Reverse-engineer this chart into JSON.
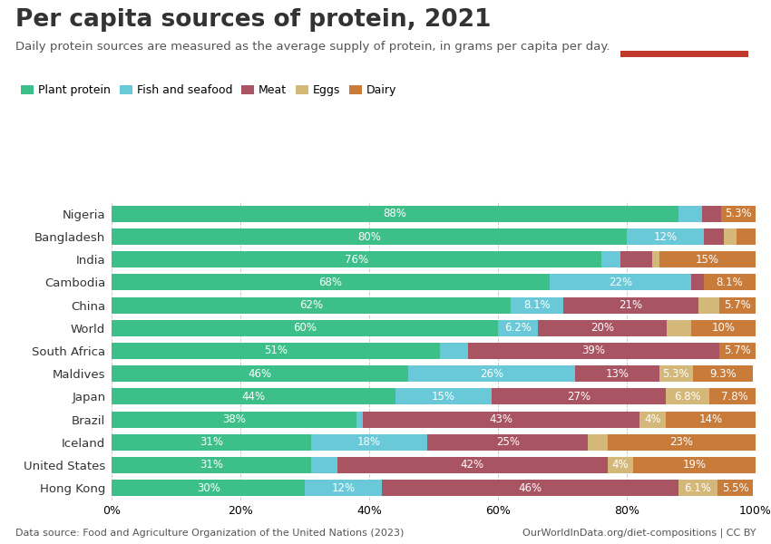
{
  "title": "Per capita sources of protein, 2021",
  "subtitle": "Daily protein sources are measured as the average supply of protein, in grams per capita per day.",
  "datasource": "Data source: Food and Agriculture Organization of the United Nations (2023)",
  "url": "OurWorldInData.org/diet-compositions | CC BY",
  "categories": [
    "Nigeria",
    "Bangladesh",
    "India",
    "Cambodia",
    "China",
    "World",
    "South Africa",
    "Maldives",
    "Japan",
    "Brazil",
    "Iceland",
    "United States",
    "Hong Kong"
  ],
  "series": [
    {
      "name": "Plant protein",
      "color": "#3dbf8a",
      "values": [
        88,
        80,
        76,
        68,
        62,
        60,
        51,
        46,
        44,
        38,
        31,
        31,
        30
      ],
      "labels": [
        "88%",
        "80%",
        "76%",
        "68%",
        "62%",
        "60%",
        "51%",
        "46%",
        "44%",
        "38%",
        "31%",
        "31%",
        "30%"
      ]
    },
    {
      "name": "Fish and seafood",
      "color": "#6ac9d8",
      "values": [
        3.7,
        12,
        3,
        22,
        8.1,
        6.2,
        4.3,
        26,
        15,
        1,
        18,
        4,
        12
      ],
      "labels": [
        "",
        "12%",
        "",
        "22%",
        "8.1%",
        "6.2%",
        "",
        "26%",
        "15%",
        "",
        "18%",
        "",
        "12%"
      ]
    },
    {
      "name": "Meat",
      "color": "#a85462",
      "values": [
        3,
        3,
        5,
        1.9,
        21,
        20,
        39,
        13,
        27,
        43,
        25,
        42,
        46
      ],
      "labels": [
        "",
        "",
        "",
        "",
        "21%",
        "20%",
        "39%",
        "13%",
        "27%",
        "43%",
        "25%",
        "42%",
        "46%"
      ]
    },
    {
      "name": "Eggs",
      "color": "#d4b87a",
      "values": [
        0,
        2,
        1,
        0,
        3.2,
        3.8,
        0,
        5.3,
        6.8,
        4,
        3,
        4,
        6.1
      ],
      "labels": [
        "",
        "",
        "",
        "",
        "",
        "",
        "",
        "5.3%",
        "6.8%",
        "4%",
        "",
        "4%",
        "6.1%"
      ]
    },
    {
      "name": "Dairy",
      "color": "#c97c3a",
      "values": [
        5.3,
        3,
        15,
        8.1,
        5.7,
        10,
        5.7,
        9.3,
        7.8,
        14,
        23,
        19,
        5.5
      ],
      "labels": [
        "5.3%",
        "",
        "15%",
        "8.1%",
        "5.7%",
        "10%",
        "5.7%",
        "9.3%",
        "7.8%",
        "14%",
        "23%",
        "19%",
        "5.5%"
      ]
    }
  ],
  "background_color": "#ffffff",
  "text_color": "#333333",
  "title_fontsize": 19,
  "subtitle_fontsize": 9.5,
  "label_fontsize": 8.5,
  "legend_fontsize": 9,
  "owid_box_color": "#1a3a5c",
  "owid_box_red": "#c0392b"
}
